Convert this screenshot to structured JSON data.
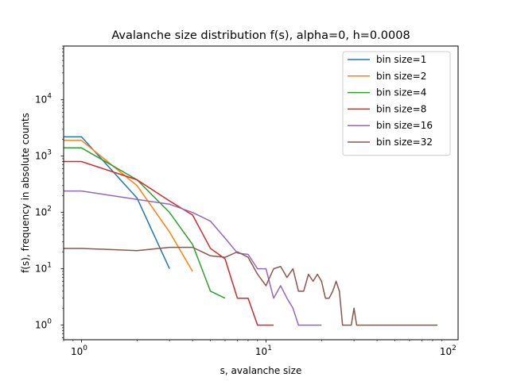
{
  "chart_data": {
    "type": "line",
    "title": "Avalanche size distribution f(s), alpha=0, h=0.0008",
    "xlabel": "s, avalanche size",
    "ylabel": "f(s), frequency in absolute counts",
    "xscale": "log",
    "yscale": "log",
    "xlim": [
      0.8,
      110
    ],
    "ylim": [
      0.55,
      90000
    ],
    "xticks": [
      "10^0",
      "10^1",
      "10^2"
    ],
    "yticks": [
      "10^0",
      "10^1",
      "10^2",
      "10^3",
      "10^4"
    ],
    "grid": false,
    "legend_position": "top-right",
    "series": [
      {
        "name": "bin size=1",
        "color": "#1f77b4",
        "x": [
          0.8,
          1,
          2,
          3
        ],
        "y": [
          2200,
          2200,
          180,
          10
        ]
      },
      {
        "name": "bin size=2",
        "color": "#ff7f0e",
        "x": [
          0.8,
          1,
          2,
          3,
          4
        ],
        "y": [
          1900,
          1900,
          300,
          45,
          9
        ]
      },
      {
        "name": "bin size=4",
        "color": "#2ca02c",
        "x": [
          0.8,
          1,
          2,
          3,
          4,
          5,
          6
        ],
        "y": [
          1400,
          1400,
          380,
          100,
          27,
          4,
          3
        ]
      },
      {
        "name": "bin size=8",
        "color": "#d62728",
        "x": [
          0.8,
          1,
          2,
          3,
          4,
          5,
          6,
          7,
          8,
          9,
          10,
          11
        ],
        "y": [
          800,
          800,
          380,
          160,
          90,
          23,
          15,
          3,
          3,
          1,
          1,
          1
        ]
      },
      {
        "name": "bin size=16",
        "color": "#9467bd",
        "x": [
          0.8,
          1,
          2,
          3,
          4,
          5,
          6,
          7,
          8,
          9,
          10,
          11,
          12,
          13,
          14,
          15,
          16,
          17,
          18,
          19,
          20
        ],
        "y": [
          240,
          240,
          170,
          140,
          100,
          70,
          35,
          19,
          18,
          10,
          10,
          3,
          5,
          3,
          2,
          1,
          1,
          1,
          1,
          1,
          1
        ]
      },
      {
        "name": "bin size=32",
        "color": "#8c564b",
        "x": [
          0.8,
          1,
          2,
          3,
          4,
          5,
          6,
          7,
          8,
          9,
          10,
          11,
          12,
          13,
          14,
          15,
          16,
          17,
          18,
          19,
          20,
          21,
          22,
          23,
          24,
          25,
          26,
          27,
          28,
          29,
          30,
          31,
          32,
          33,
          34,
          35,
          36,
          37,
          38,
          39,
          40,
          42,
          44,
          46,
          48,
          50,
          55,
          60,
          65,
          70,
          75,
          80,
          85
        ],
        "y": [
          23,
          23,
          21,
          24,
          24,
          17,
          16,
          20,
          16,
          8,
          5,
          10,
          11,
          7,
          10,
          4,
          4,
          8,
          6,
          8,
          6,
          3,
          3,
          4,
          6,
          4,
          1,
          1,
          1,
          1,
          2,
          1,
          1,
          1,
          1,
          1,
          1,
          1,
          1,
          1,
          1,
          1,
          1,
          1,
          1,
          1,
          1,
          1,
          1,
          1,
          1,
          1,
          1
        ]
      }
    ]
  }
}
